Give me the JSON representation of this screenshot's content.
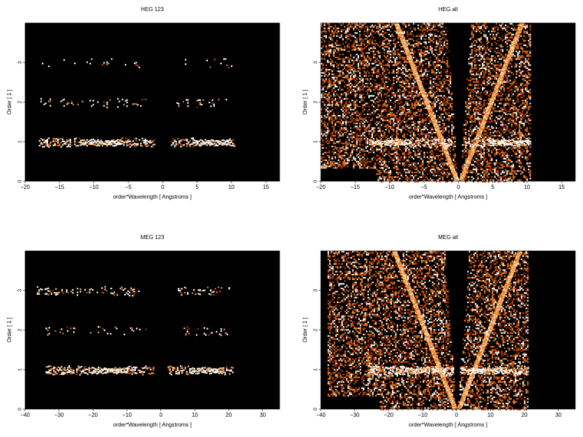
{
  "chart_data": [
    {
      "type": "heatmap",
      "title": "HEG 123",
      "xlabel": "order*Wavelength [ Angstroms ]",
      "ylabel": "Order [ 1 ]",
      "xlim": [
        -20,
        17
      ],
      "ylim": [
        0,
        4
      ],
      "xticks": [
        "−20",
        "−15",
        "−10",
        "−5",
        "0",
        "5",
        "10",
        "15"
      ],
      "xtick_values": [
        -20,
        -15,
        -10,
        -5,
        0,
        5,
        10,
        15
      ],
      "yticks": [
        "0",
        "1",
        "2",
        "3"
      ],
      "ytick_values": [
        0,
        1,
        2,
        3
      ],
      "background": "#000000",
      "bands": [
        {
          "order": 1,
          "x_ranges": [
            [
              -18,
              -1.2
            ],
            [
              1.2,
              10.5
            ]
          ],
          "density": 0.55,
          "peak_ranges": [
            [
              -12,
              -6
            ],
            [
              4.5,
              9.5
            ]
          ]
        },
        {
          "order": 2,
          "x_ranges": [
            [
              -18,
              -2.5
            ],
            [
              2,
              10
            ]
          ],
          "density": 0.1,
          "peak_ranges": []
        },
        {
          "order": 3,
          "x_ranges": [
            [
              -18,
              -3.5
            ],
            [
              3,
              10
            ]
          ],
          "density": 0.05,
          "peak_ranges": []
        }
      ],
      "cones": false
    },
    {
      "type": "heatmap",
      "title": "HEG all",
      "xlabel": "order*Wavelength [ Angstroms ]",
      "ylabel": "Order [ 1 ]",
      "xlim": [
        -20,
        17
      ],
      "ylim": [
        0,
        4
      ],
      "xticks": [
        "−20",
        "−15",
        "−10",
        "−5",
        "0",
        "5",
        "10",
        "15"
      ],
      "xtick_values": [
        -20,
        -15,
        -10,
        -5,
        0,
        5,
        10,
        15
      ],
      "yticks": [
        "0",
        "1",
        "2",
        "3"
      ],
      "ytick_values": [
        0,
        1,
        2,
        3
      ],
      "background": "#000000",
      "bands": [
        {
          "order": 1,
          "x_ranges": [
            [
              -13,
              -1
            ],
            [
              1,
              10.5
            ]
          ],
          "density": 0.6,
          "peak_ranges": [
            [
              -13,
              -7
            ],
            [
              4.5,
              10
            ]
          ]
        }
      ],
      "background_scatter": {
        "x_range": [
          -20,
          10.5
        ],
        "density": 0.4
      },
      "cones": true
    },
    {
      "type": "heatmap",
      "title": "MEG 123",
      "xlabel": "order*Wavelength [ Angstroms ]",
      "ylabel": "Order [ 1 ]",
      "xlim": [
        -40,
        35
      ],
      "ylim": [
        0,
        4
      ],
      "xticks": [
        "−40",
        "−30",
        "−20",
        "−10",
        "0",
        "10",
        "20",
        "30"
      ],
      "xtick_values": [
        -40,
        -30,
        -20,
        -10,
        0,
        10,
        20,
        30
      ],
      "yticks": [
        "0",
        "1",
        "2",
        "3"
      ],
      "ytick_values": [
        0,
        1,
        2,
        3
      ],
      "background": "#000000",
      "bands": [
        {
          "order": 1,
          "x_ranges": [
            [
              -34,
              -2
            ],
            [
              2,
              21
            ]
          ],
          "density": 0.5,
          "peak_ranges": [
            [
              -20,
              -10
            ],
            [
              8,
              18
            ]
          ]
        },
        {
          "order": 2,
          "x_ranges": [
            [
              -34,
              -4
            ],
            [
              4,
              20
            ]
          ],
          "density": 0.12,
          "peak_ranges": []
        },
        {
          "order": 3,
          "x_ranges": [
            [
              -37,
              -5
            ],
            [
              5,
              20
            ]
          ],
          "density": 0.15,
          "peak_ranges": []
        }
      ],
      "cones": false
    },
    {
      "type": "heatmap",
      "title": "MEG all",
      "xlabel": "order*Wavelength [ Angstroms ]",
      "ylabel": "Order [ 1 ]",
      "xlim": [
        -40,
        35
      ],
      "ylim": [
        0,
        4
      ],
      "xticks": [
        "−40",
        "−30",
        "−20",
        "−10",
        "0",
        "10",
        "20",
        "30"
      ],
      "xtick_values": [
        -40,
        -30,
        -20,
        -10,
        0,
        10,
        20,
        30
      ],
      "yticks": [
        "0",
        "1",
        "2",
        "3"
      ],
      "ytick_values": [
        0,
        1,
        2,
        3
      ],
      "background": "#000000",
      "bands": [
        {
          "order": 1,
          "x_ranges": [
            [
              -26,
              -1
            ],
            [
              1,
              21
            ]
          ],
          "density": 0.6,
          "peak_ranges": [
            [
              -15,
              -3
            ],
            [
              3,
              15
            ]
          ]
        }
      ],
      "background_scatter": {
        "x_range": [
          -38,
          21
        ],
        "density": 0.4
      },
      "cones": true
    }
  ],
  "colors": {
    "plot_background": "#000000",
    "heat_low": "#8b1a00",
    "heat_mid": "#e8741a",
    "heat_high": "#fff4c8",
    "page_background": "#ffffff"
  }
}
